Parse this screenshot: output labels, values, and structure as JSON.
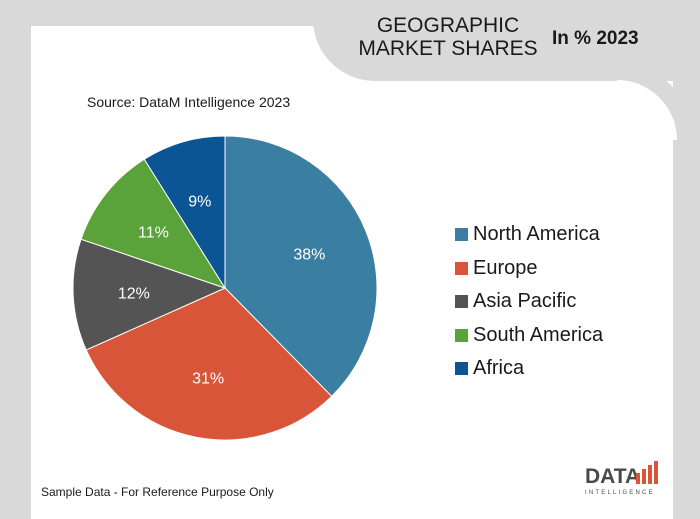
{
  "header": {
    "title": "GEOGRAPHIC MARKET SHARES",
    "subtitle": "In % 2023"
  },
  "source_text": "Source: DataM Intelligence 2023",
  "footer_text": "Sample Data - For Reference Purpose Only",
  "logo": {
    "line1": "DATA",
    "line2": "INTELLIGENCE"
  },
  "chart_data": {
    "type": "pie",
    "categories": [
      "North America",
      "Europe",
      "Asia Pacific",
      "South America",
      "Africa"
    ],
    "values": [
      38,
      31,
      12,
      11,
      9
    ],
    "labels": [
      "38%",
      "31%",
      "12%",
      "11%",
      "9%"
    ],
    "colors": [
      "#3a7ea1",
      "#d8553a",
      "#545454",
      "#5aa33a",
      "#0b5594"
    ],
    "start_angle_deg": 0,
    "direction": "clockwise",
    "legend_position": "right"
  }
}
